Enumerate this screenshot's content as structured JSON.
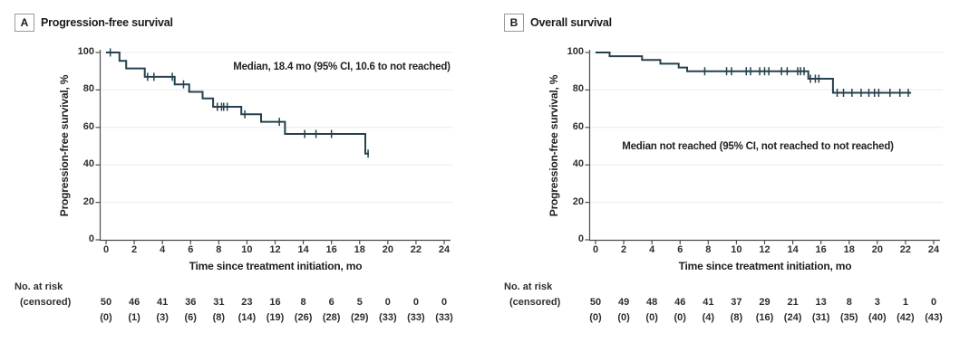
{
  "figure": {
    "background": "#ffffff",
    "curve_color": "#25404e",
    "grid_color": "#ececec",
    "axis_color": "#4d4d4d",
    "text_color": "#262626",
    "risk_header_line1": "No. at risk",
    "risk_header_line2": "(censored)"
  },
  "chart_data": [
    {
      "type": "line",
      "subtype": "kaplan-meier-step",
      "panel_label": "A",
      "title": "Progression-free survival",
      "annotation": "Median, 18.4 mo (95% CI, 10.6 to not reached)",
      "xlabel": "Time since treatment initiation, mo",
      "ylabel": "Progression-free survival, %",
      "xlim": [
        0,
        24
      ],
      "ylim": [
        0,
        100
      ],
      "xticks": [
        0,
        2,
        4,
        6,
        8,
        10,
        12,
        14,
        16,
        18,
        20,
        22,
        24
      ],
      "yticks": [
        0,
        20,
        40,
        60,
        80,
        100
      ],
      "grid": true,
      "steps": [
        [
          0,
          100
        ],
        [
          0.95,
          95.5
        ],
        [
          1.43,
          91.5
        ],
        [
          2.75,
          87
        ],
        [
          4.87,
          83
        ],
        [
          5.9,
          79
        ],
        [
          6.85,
          75.5
        ],
        [
          7.6,
          71
        ],
        [
          9.6,
          67
        ],
        [
          11.0,
          63
        ],
        [
          12.7,
          56.5
        ],
        [
          18.4,
          46
        ]
      ],
      "curve_end_month": 18.65,
      "censor_marks": [
        [
          0.3,
          100
        ],
        [
          2.95,
          87
        ],
        [
          3.4,
          87
        ],
        [
          4.7,
          87
        ],
        [
          5.5,
          83
        ],
        [
          7.9,
          71
        ],
        [
          8.2,
          71
        ],
        [
          8.35,
          71
        ],
        [
          8.6,
          71
        ],
        [
          9.85,
          67
        ],
        [
          12.3,
          63
        ],
        [
          14.1,
          56.5
        ],
        [
          14.9,
          56.5
        ],
        [
          16.0,
          56.5
        ],
        [
          18.6,
          46
        ]
      ],
      "risk_times": [
        0,
        2,
        4,
        6,
        8,
        10,
        12,
        14,
        16,
        18,
        20,
        22,
        24
      ],
      "at_risk": [
        "50",
        "46",
        "41",
        "36",
        "31",
        "23",
        "16",
        "8",
        "6",
        "5",
        "0",
        "0",
        "0"
      ],
      "censored": [
        "(0)",
        "(1)",
        "(3)",
        "(6)",
        "(8)",
        "(14)",
        "(19)",
        "(26)",
        "(28)",
        "(29)",
        "(33)",
        "(33)",
        "(33)"
      ]
    },
    {
      "type": "line",
      "subtype": "kaplan-meier-step",
      "panel_label": "B",
      "title": "Overall survival",
      "annotation": "Median not reached (95% CI, not reached to not reached)",
      "xlabel": "Time since treatment initiation, mo",
      "ylabel": "Progression-free survival, %",
      "xlim": [
        0,
        24
      ],
      "ylim": [
        0,
        100
      ],
      "xticks": [
        0,
        2,
        4,
        6,
        8,
        10,
        12,
        14,
        16,
        18,
        20,
        22,
        24
      ],
      "yticks": [
        0,
        20,
        40,
        60,
        80,
        100
      ],
      "grid": true,
      "steps": [
        [
          0,
          100
        ],
        [
          1.0,
          98
        ],
        [
          3.3,
          96
        ],
        [
          4.6,
          94
        ],
        [
          5.9,
          92
        ],
        [
          6.5,
          90
        ],
        [
          15.1,
          86
        ],
        [
          16.85,
          78.5
        ]
      ],
      "curve_end_month": 22.4,
      "censor_marks": [
        [
          7.75,
          90
        ],
        [
          9.3,
          90
        ],
        [
          9.65,
          90
        ],
        [
          10.7,
          90
        ],
        [
          11.0,
          90
        ],
        [
          11.65,
          90
        ],
        [
          12.0,
          90
        ],
        [
          12.3,
          90
        ],
        [
          13.2,
          90
        ],
        [
          13.6,
          90
        ],
        [
          14.35,
          90
        ],
        [
          14.55,
          90
        ],
        [
          14.8,
          90
        ],
        [
          15.25,
          86
        ],
        [
          15.6,
          86
        ],
        [
          15.85,
          86
        ],
        [
          17.15,
          78.5
        ],
        [
          17.6,
          78.5
        ],
        [
          18.2,
          78.5
        ],
        [
          18.85,
          78.5
        ],
        [
          19.4,
          78.5
        ],
        [
          19.8,
          78.5
        ],
        [
          20.1,
          78.5
        ],
        [
          20.9,
          78.5
        ],
        [
          21.6,
          78.5
        ],
        [
          22.2,
          78.5
        ]
      ],
      "risk_times": [
        0,
        2,
        4,
        6,
        8,
        10,
        12,
        14,
        16,
        18,
        20,
        22,
        24
      ],
      "at_risk": [
        "50",
        "49",
        "48",
        "46",
        "41",
        "37",
        "29",
        "21",
        "13",
        "8",
        "3",
        "1",
        "0"
      ],
      "censored": [
        "(0)",
        "(0)",
        "(0)",
        "(0)",
        "(4)",
        "(8)",
        "(16)",
        "(24)",
        "(31)",
        "(35)",
        "(40)",
        "(42)",
        "(43)"
      ]
    }
  ]
}
